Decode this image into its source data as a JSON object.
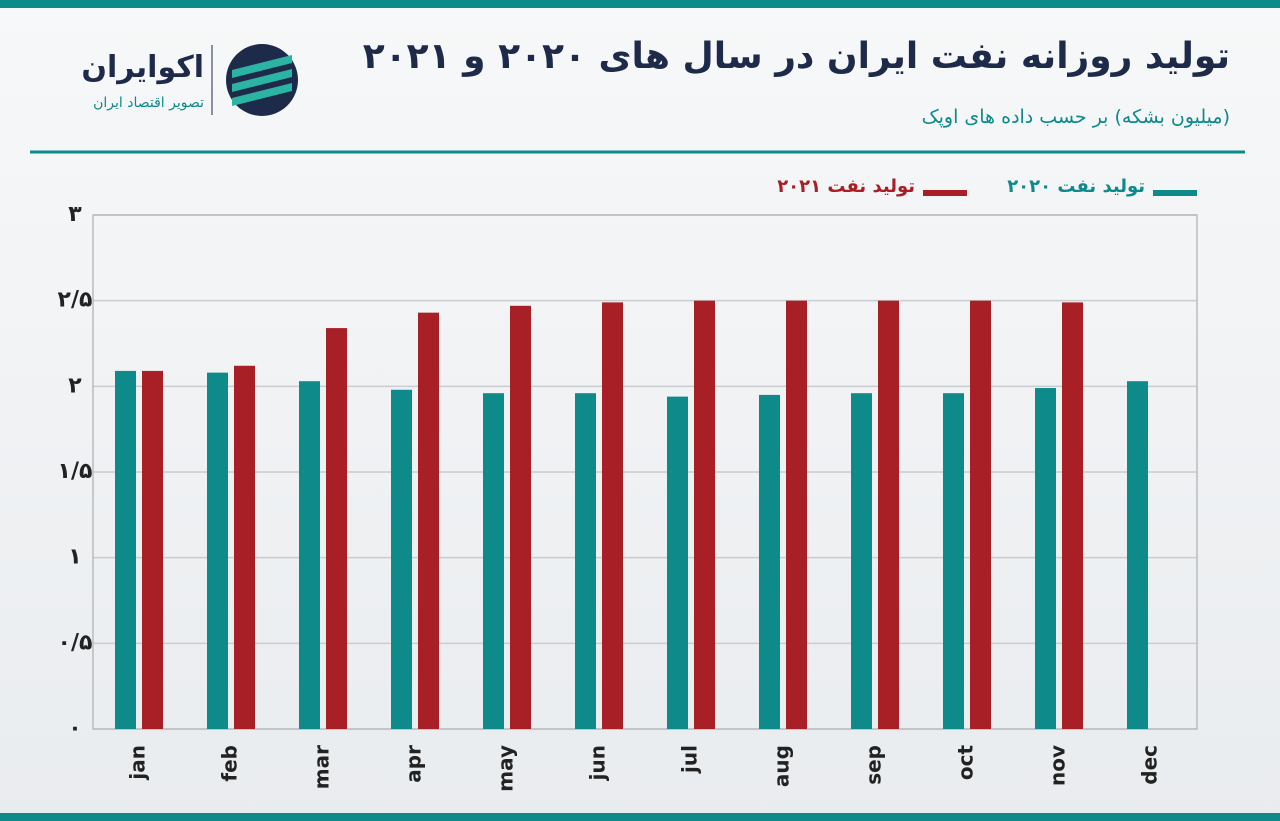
{
  "logo": {
    "name": "اکوایران",
    "tagline": "تصویر اقتصاد ایران"
  },
  "chart_data": {
    "type": "bar",
    "title": "تولید روزانه نفت ایران در سال های ۲۰۲۰ و ۲۰۲۱",
    "subtitle": "(میلیون بشکه) بر حسب داده های اوپک",
    "categories": [
      "jan",
      "feb",
      "mar",
      "apr",
      "may",
      "jun",
      "jul",
      "aug",
      "sep",
      "oct",
      "nov",
      "dec"
    ],
    "series": [
      {
        "name": "تولید نفت ۲۰۲۰",
        "color": "#0e8a8a",
        "values": [
          2.09,
          2.08,
          2.03,
          1.98,
          1.96,
          1.96,
          1.94,
          1.95,
          1.96,
          1.96,
          1.99,
          2.03
        ]
      },
      {
        "name": "تولید نفت ۲۰۲۱",
        "color": "#a91f26",
        "values": [
          2.09,
          2.12,
          2.34,
          2.43,
          2.47,
          2.49,
          2.5,
          2.5,
          2.5,
          2.5,
          2.49,
          null
        ]
      }
    ],
    "ylim": [
      0,
      3
    ],
    "yticks": [
      {
        "value": 0,
        "label": "۰"
      },
      {
        "value": 0.5,
        "label": "۰/۵"
      },
      {
        "value": 1,
        "label": "۱"
      },
      {
        "value": 1.5,
        "label": "۱/۵"
      },
      {
        "value": 2,
        "label": "۲"
      },
      {
        "value": 2.5,
        "label": "۲/۵"
      },
      {
        "value": 3,
        "label": "۳"
      }
    ],
    "grid": true
  }
}
